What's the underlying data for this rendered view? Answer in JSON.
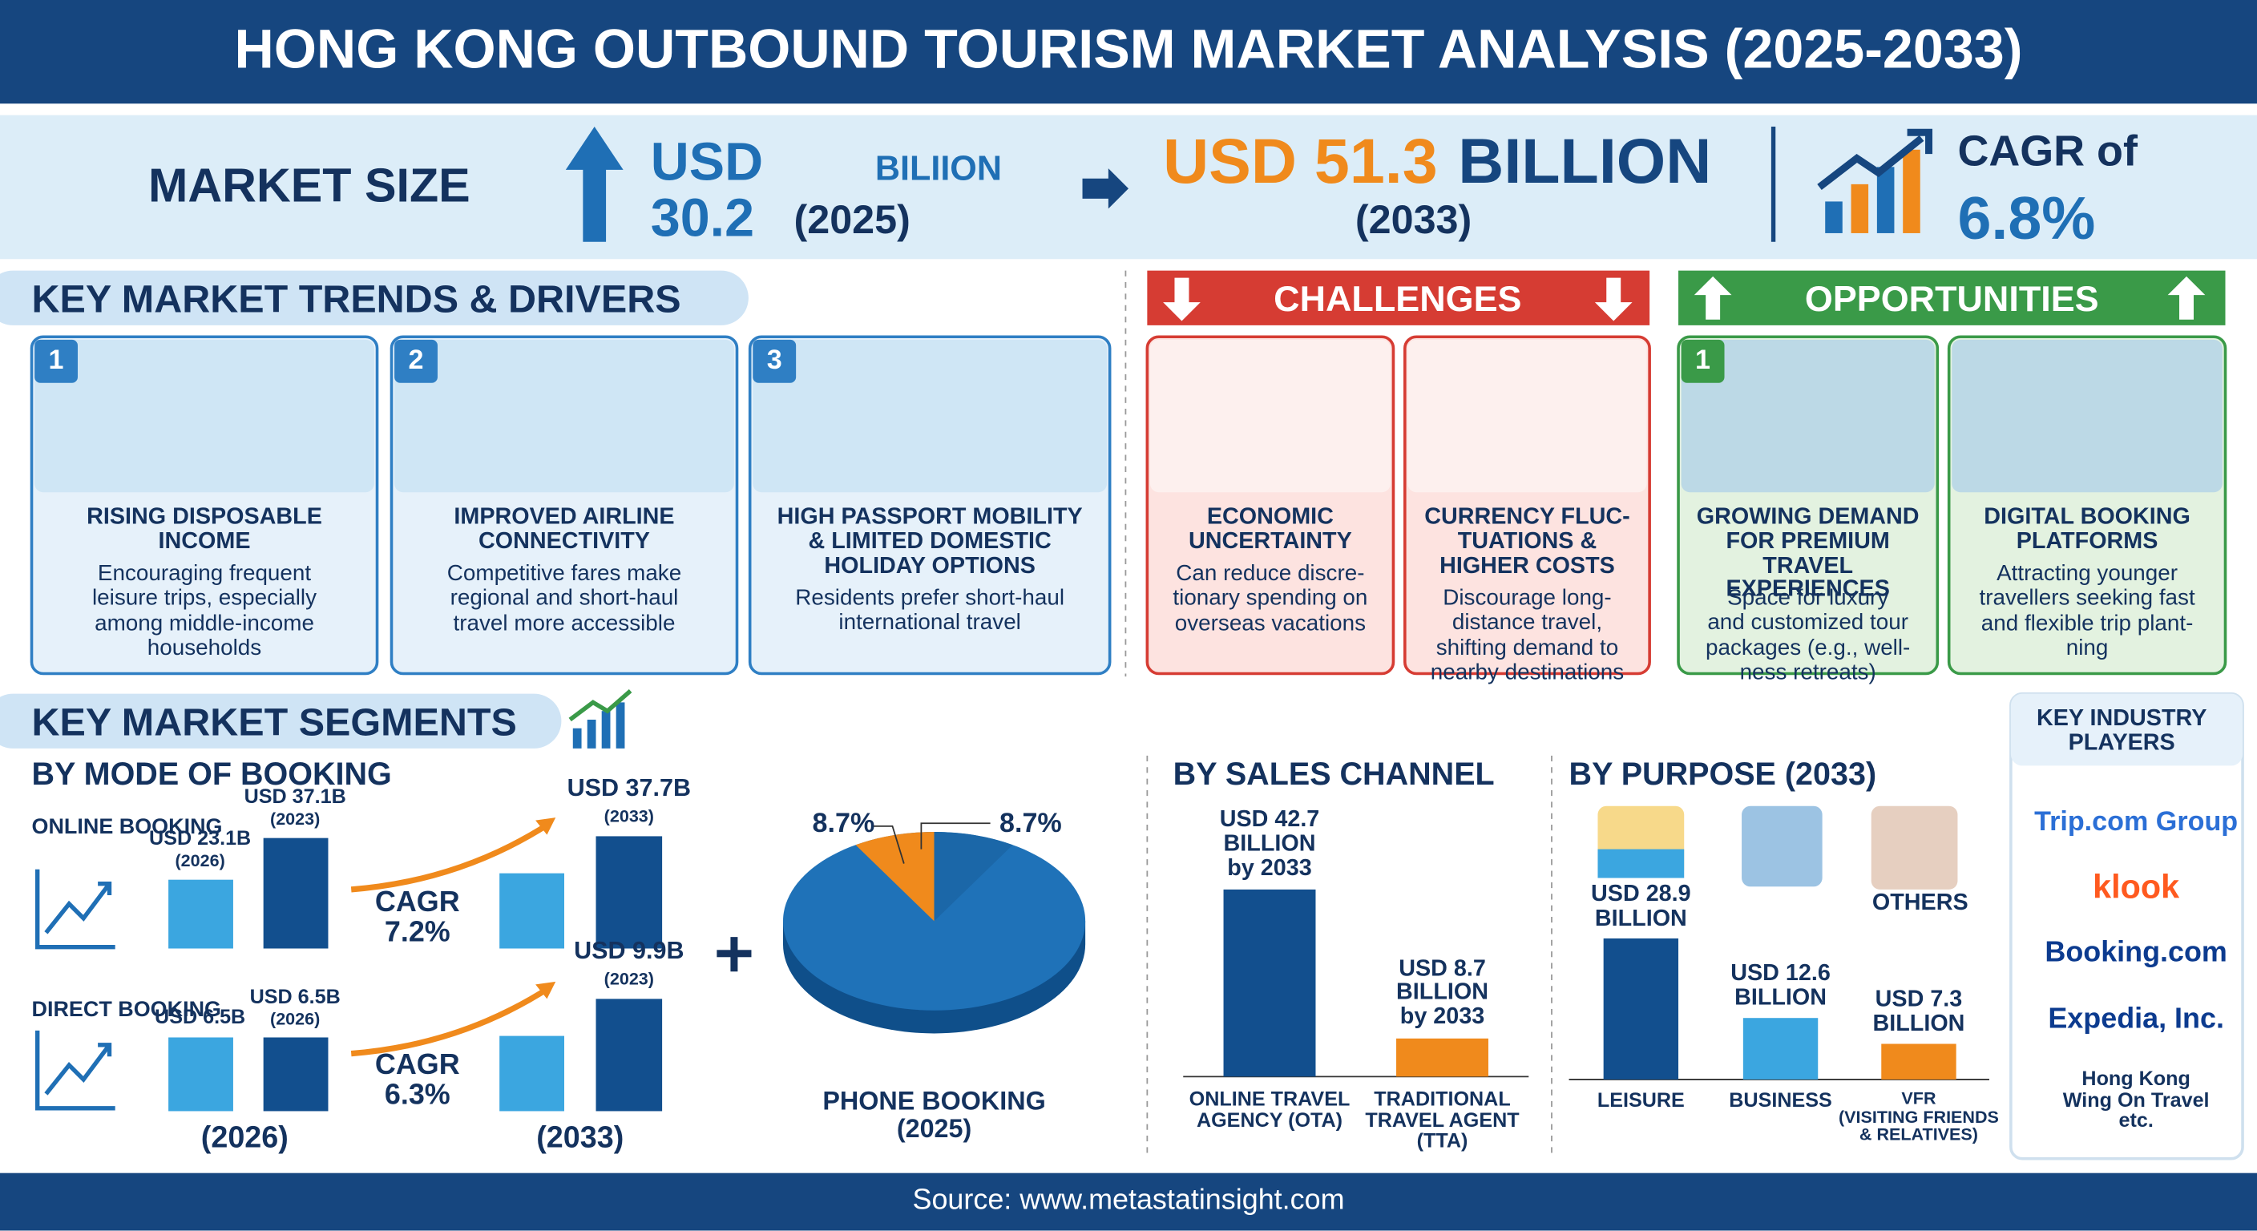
{
  "header": {
    "title": "HONG KONG OUTBOUND TOURISM MARKET ANALYSIS (2025-2033)"
  },
  "market_size": {
    "label": "MARKET SIZE",
    "value_2025_amount": "USD 30.2",
    "value_2025_unit": "BILIION",
    "year_2025": "(2025)",
    "value_2033_amount": "USD 51.3",
    "value_2033_unit": "BILLION",
    "year_2033": "(2033)",
    "cagr_label": "CAGR of",
    "cagr": "6.8%"
  },
  "trends": {
    "title": "KEY MARKET TRENDS & DRIVERS",
    "items": [
      {
        "number": "1",
        "title": "RISING DISPOSABLE\nINCOME",
        "text": "Encouraging frequent\nleisure trips, especially\namong middle-income\nhouseholds"
      },
      {
        "number": "2",
        "title": "IMPROVED AIRLINE\nCONNECTIVITY",
        "text": "Competitive fares make\nregional and short-haul\ntravel more accessible"
      },
      {
        "number": "3",
        "title": "HIGH PASSPORT MOBILITY\n& LIMITED DOMESTIC\nHOLIDAY OPTIONS",
        "text": "Residents prefer short-haul\ninternational travel"
      }
    ]
  },
  "challenges": {
    "title": "CHALLENGES",
    "items": [
      {
        "title": "ECONOMIC\nUNCERTAINTY",
        "text": "Can reduce discre-\ntionary spending on\noverseas vacations"
      },
      {
        "title": "CURRENCY FLUC-\nTUATIONS &\nHIGHER COSTS",
        "text": "Discourage long-\ndistance travel,\nshifting demand to\nnearby destinations"
      }
    ]
  },
  "opportunities": {
    "title": "OPPORTUNITIES",
    "items": [
      {
        "number": "1",
        "title": "GROWING DEMAND\nFOR PREMIUM TRAVEL\nEXPERIENCES",
        "text": "Space for luxury\nand customized tour\npackages (e.g., well-\nness retreats)"
      },
      {
        "title": "DIGITAL BOOKING\nPLATFORMS",
        "text": "Attracting younger\ntravellers seeking fast\nand flexible trip plant-\nning"
      }
    ]
  },
  "segments": {
    "title": "KEY MARKET SEGMENTS",
    "mode_of_booking": {
      "title": "BY MODE OF BOOKING",
      "online": {
        "label": "ONLINE BOOKING",
        "values": [
          23.1,
          37.1
        ],
        "value_labels": [
          "USD 23.1B",
          "USD 37.1B"
        ],
        "years": [
          "(2026)",
          "(2023)"
        ],
        "cagr": "CAGR\n7.2%",
        "forecast": 37.7,
        "forecast_label": "USD 37.7B",
        "forecast_year": "(2033)"
      },
      "direct": {
        "label": "DIRECT BOOKING",
        "values": [
          6.5,
          6.5
        ],
        "value_labels": [
          "USD 6.5B",
          "USD 6.5B"
        ],
        "years": [
          null,
          "(2026)"
        ],
        "cagr": "CAGR\n6.3%",
        "forecast": 9.9,
        "forecast_label": "USD 9.9B",
        "forecast_year": "(2023)"
      },
      "axis_years": [
        "(2026)",
        "(2033)"
      ],
      "pie": {
        "values": [
          8.7,
          8.7
        ],
        "value_labels": [
          "8.7%",
          "8.7%"
        ],
        "label": "PHONE BOOKING\n(2025)"
      }
    },
    "sales_channel": {
      "title": "BY SALES CHANNEL",
      "categories": [
        "ONLINE TRAVEL\nAGENCY (OTA)",
        "TRADITIONAL\nTRAVEL AGENT\n(TTA)"
      ],
      "values": [
        42.7,
        8.7
      ],
      "value_labels": [
        "USD 42.7\nBILLION\nby 2033",
        "USD 8.7\nBILLION\nby 2033"
      ]
    },
    "purpose": {
      "title": "BY PURPOSE (2033)",
      "categories": [
        "LEISURE",
        "BUSINESS",
        "VFR\n(VISITING FRIENDS\n& RELATIVES)"
      ],
      "values": [
        28.9,
        12.6,
        7.3
      ],
      "value_labels": [
        "USD 28.9\nBILLION",
        "USD 12.6\nBILLION",
        "USD 7.3\nBILLION"
      ],
      "others_label": "OTHERS"
    }
  },
  "players": {
    "title": "KEY INDUSTRY\nPLAYERS",
    "items": [
      "Trip.com Group",
      "klook",
      "Booking.com",
      "Expedia, Inc.",
      "Hong Kong\nWing On Travel\netc."
    ]
  },
  "footer": {
    "source": "Source: www.metastatinsight.com"
  }
}
